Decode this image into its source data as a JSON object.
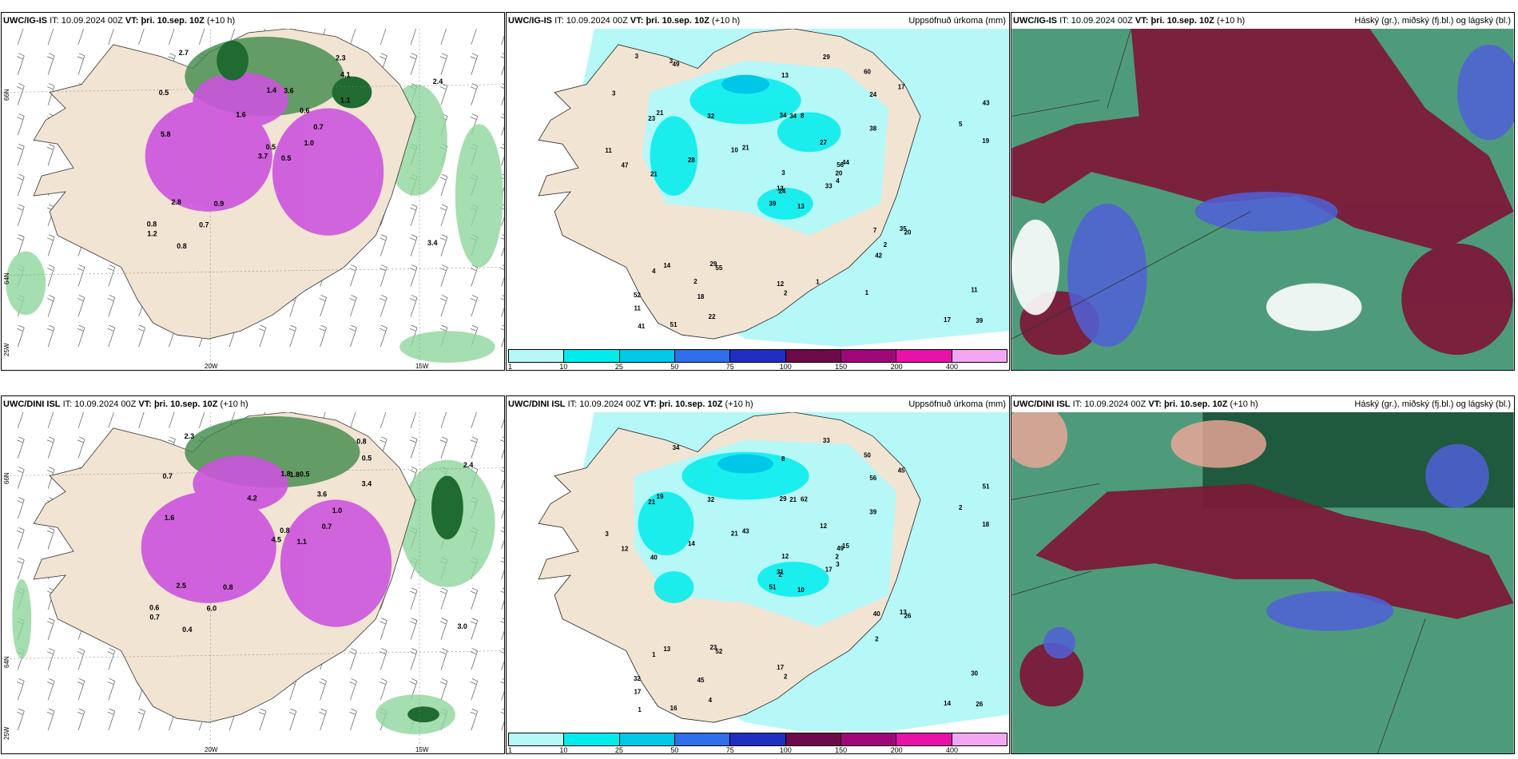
{
  "rows": [
    {
      "id": "ig",
      "model": "UWC/IG-IS",
      "it_label": "IT:",
      "it_time": "10.09.2024 00Z",
      "vt_label": "VT:",
      "vt_time": "þri. 10.sep. 10Z",
      "lead": "(+10 h)",
      "numbers_left": [
        "0.5",
        "0.5",
        "0.5",
        "0.8",
        "0.7",
        "0.9",
        "2.3",
        "3.6",
        "4.1",
        "1.0",
        "2.7",
        "3.4",
        "5.8",
        "2.4",
        "3.7",
        "1.1",
        "0.8",
        "1.4",
        "0.6",
        "2.8",
        "1.6",
        "1.2",
        "0.7"
      ],
      "numbers_mid": [
        "13",
        "23",
        "24",
        "52",
        "56",
        "55",
        "60",
        "8",
        "24",
        "33",
        "49",
        "39",
        "21",
        "43",
        "39",
        "38",
        "51",
        "34",
        "27",
        "14",
        "21",
        "11",
        "18",
        "34",
        "44",
        "20",
        "21",
        "13",
        "47",
        "7",
        "19",
        "13",
        "12",
        "3",
        "32",
        "17",
        "29",
        "17",
        "11",
        "35",
        "29",
        "10",
        "28",
        "42",
        "22",
        "11",
        "20",
        "41",
        "2",
        "4",
        "4",
        "5",
        "3",
        "2",
        "1",
        "2",
        "3",
        "3",
        "1"
      ]
    },
    {
      "id": "dini",
      "model": "UWC/DINI ISL",
      "it_label": "IT:",
      "it_time": "10.09.2024 00Z",
      "vt_label": "VT:",
      "vt_time": "þri. 10.sep. 10Z",
      "lead": "(+10 h)",
      "numbers_left": [
        "1.1",
        "0.7",
        "0.8",
        "0.6",
        "1.0",
        "0.8",
        "0.8",
        "0.5",
        "0.5",
        "0.7",
        "2.3",
        "3.0",
        "1.6",
        "2.4",
        "4.5",
        "3.4",
        "0.4",
        "1.8",
        "3.6",
        "2.5",
        "4.2",
        "0.7",
        "6.0",
        "1.8"
      ],
      "numbers_mid": [
        "10",
        "21",
        "2",
        "32",
        "49",
        "52",
        "50",
        "62",
        "56",
        "17",
        "34",
        "26",
        "40",
        "51",
        "51",
        "39",
        "16",
        "29",
        "12",
        "13",
        "43",
        "17",
        "45",
        "21",
        "15",
        "26",
        "19",
        "8",
        "12",
        "40",
        "18",
        "31",
        "17",
        "12",
        "32",
        "45",
        "23",
        "14",
        "30",
        "13",
        "33",
        "21",
        "14",
        "2",
        "4",
        "3",
        "2",
        "1",
        "2",
        "3",
        "1",
        "2"
      ]
    }
  ],
  "precip": {
    "title": "Uppsöfnuð úrkoma (mm)",
    "legend_ticks": [
      "1",
      "10",
      "25",
      "50",
      "75",
      "100",
      "150",
      "200",
      "400"
    ],
    "legend_colors": [
      "#b6f7f7",
      "#00ecec",
      "#00c7e8",
      "#2f6ee8",
      "#1f2fc4",
      "#6d0a4a",
      "#a0087a",
      "#e812a8",
      "#f3a7f3"
    ]
  },
  "cloud": {
    "title": "Háský (gr.), miðský (fj.bl.) og lágský (bl.)"
  },
  "axes": {
    "lat66": "66N",
    "lat64": "64N",
    "lon25": "25W",
    "lon20": "20W",
    "lon15": "15W"
  },
  "colors": {
    "land": "#f2e4d3",
    "sea": "#ffffff",
    "precip_base": "#b6f7f7",
    "wind_green": "#8fd69c",
    "dark_green": "#1f6b32",
    "magenta": "#cc55dd",
    "cloud_maroon": "#7b1a3a",
    "cloud_blue": "#5060d8",
    "cloud_green": "#2f8a64"
  }
}
